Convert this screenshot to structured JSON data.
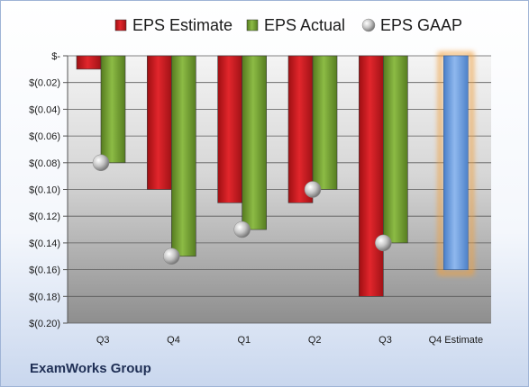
{
  "company": "ExamWorks Group",
  "chart_data": {
    "type": "bar",
    "title": "",
    "xlabel": "",
    "ylabel": "",
    "categories": [
      "Q3",
      "Q4",
      "Q1",
      "Q2",
      "Q3",
      "Q4 Estimate"
    ],
    "series": [
      {
        "name": "EPS Estimate",
        "color": "#c8151d",
        "values": [
          -0.01,
          -0.1,
          -0.11,
          -0.11,
          -0.18,
          null
        ]
      },
      {
        "name": "EPS Actual",
        "color": "#76a033",
        "values": [
          -0.08,
          -0.15,
          -0.13,
          -0.1,
          -0.14,
          null
        ]
      },
      {
        "name": "EPS GAAP",
        "color": "#b8b8b8",
        "values": [
          -0.08,
          -0.15,
          -0.13,
          -0.1,
          -0.14,
          null
        ]
      }
    ],
    "estimate_bar": {
      "category": "Q4 Estimate",
      "value": -0.16,
      "color": "#6f9fe0",
      "glow": "#f0a040"
    },
    "ylim": [
      -0.2,
      0
    ],
    "y_ticks": [
      "$-",
      "$(0.02)",
      "$(0.04)",
      "$(0.06)",
      "$(0.08)",
      "$(0.10)",
      "$(0.12)",
      "$(0.14)",
      "$(0.16)",
      "$(0.18)",
      "$(0.20)"
    ],
    "y_tick_values": [
      0,
      -0.02,
      -0.04,
      -0.06,
      -0.08,
      -0.1,
      -0.12,
      -0.14,
      -0.16,
      -0.18,
      -0.2
    ],
    "legend_position": "top",
    "grid": true
  }
}
